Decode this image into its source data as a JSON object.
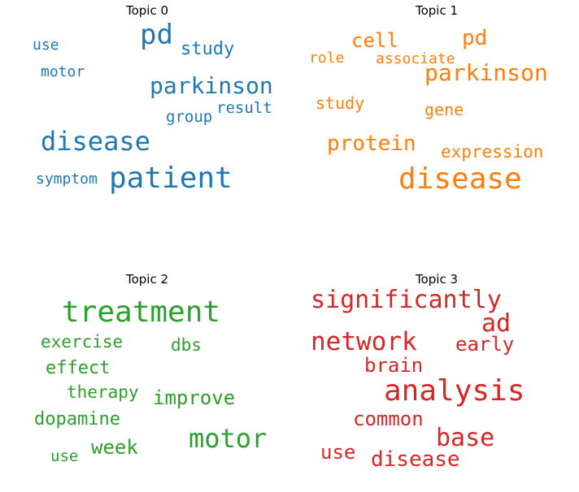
{
  "chart_data": [
    {
      "type": "wordcloud",
      "title": "Topic 0",
      "color": "#1f77b4",
      "words": [
        "pd",
        "study",
        "use",
        "motor",
        "parkinson",
        "result",
        "group",
        "disease",
        "symptom",
        "patient"
      ]
    },
    {
      "type": "wordcloud",
      "title": "Topic 1",
      "color": "#ff7f0e",
      "words": [
        "cell",
        "pd",
        "role",
        "associate",
        "parkinson",
        "study",
        "gene",
        "protein",
        "expression",
        "disease"
      ]
    },
    {
      "type": "wordcloud",
      "title": "Topic 2",
      "color": "#2ca02c",
      "words": [
        "treatment",
        "exercise",
        "dbs",
        "effect",
        "therapy",
        "improve",
        "dopamine",
        "motor",
        "week",
        "use"
      ]
    },
    {
      "type": "wordcloud",
      "title": "Topic 3",
      "color": "#d62728",
      "words": [
        "significantly",
        "ad",
        "network",
        "early",
        "brain",
        "analysis",
        "common",
        "base",
        "use",
        "disease"
      ]
    }
  ]
}
